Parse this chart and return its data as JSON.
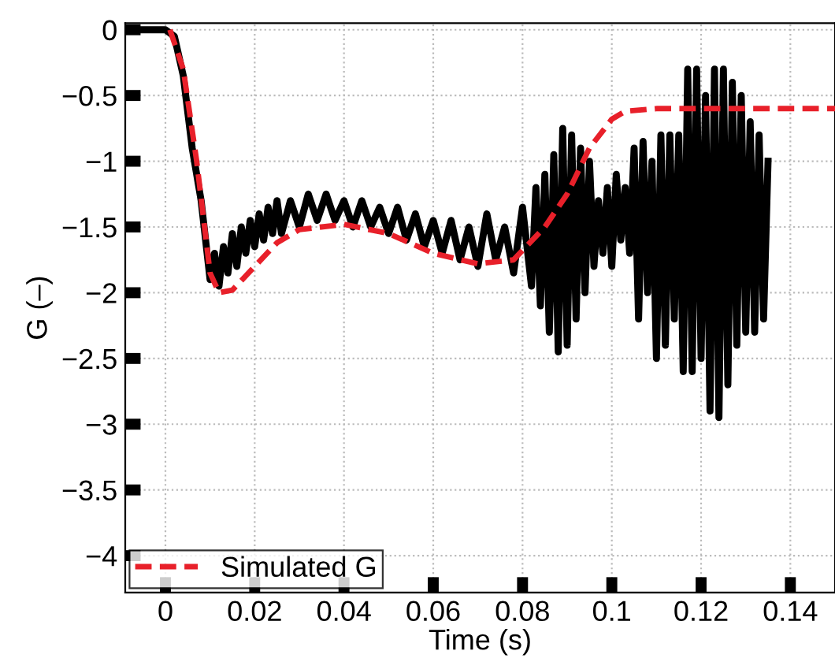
{
  "chart_data": {
    "type": "line",
    "xlabel": "Time (s)",
    "ylabel": "G (–)",
    "xlim": [
      -0.009,
      0.15
    ],
    "ylim": [
      -4.28,
      0.05
    ],
    "xticks": [
      0,
      0.02,
      0.04,
      0.06,
      0.08,
      0.1,
      0.12,
      0.14
    ],
    "yticks": [
      0,
      {
        "value": -0.5,
        "label": "−0.5"
      },
      {
        "value": -1,
        "label": "−1"
      },
      {
        "value": -1.5,
        "label": "−1.5"
      },
      {
        "value": -2,
        "label": "−2"
      },
      {
        "value": -2.5,
        "label": "−2.5"
      },
      {
        "value": -3,
        "label": "−3"
      },
      {
        "value": -3.5,
        "label": "−3.5"
      },
      {
        "value": -4,
        "label": "−4"
      }
    ],
    "grid": true,
    "legend": "bottom left",
    "series": [
      {
        "color": "#000000",
        "line_style": "solid",
        "x": [
          -0.009,
          0.0,
          0.002,
          0.004,
          0.006,
          0.008,
          0.01,
          0.011,
          0.012,
          0.013,
          0.014,
          0.015,
          0.016,
          0.017,
          0.018,
          0.019,
          0.02,
          0.021,
          0.022,
          0.023,
          0.024,
          0.025,
          0.026,
          0.028,
          0.03,
          0.032,
          0.034,
          0.036,
          0.038,
          0.04,
          0.042,
          0.044,
          0.046,
          0.048,
          0.05,
          0.052,
          0.054,
          0.056,
          0.058,
          0.06,
          0.062,
          0.064,
          0.066,
          0.068,
          0.07,
          0.072,
          0.074,
          0.076,
          0.078,
          0.08,
          0.082,
          0.083,
          0.084,
          0.085,
          0.086,
          0.087,
          0.088,
          0.089,
          0.09,
          0.091,
          0.092,
          0.093,
          0.094,
          0.095,
          0.096,
          0.097,
          0.098,
          0.099,
          0.1,
          0.101,
          0.102,
          0.103,
          0.104,
          0.105,
          0.106,
          0.107,
          0.108,
          0.109,
          0.11,
          0.111,
          0.112,
          0.113,
          0.114,
          0.115,
          0.116,
          0.117,
          0.118,
          0.119,
          0.12,
          0.121,
          0.122,
          0.123,
          0.124,
          0.125,
          0.126,
          0.127,
          0.128,
          0.129,
          0.13,
          0.131,
          0.132,
          0.133,
          0.134,
          0.135
        ],
        "values": [
          0,
          0,
          -0.05,
          -0.35,
          -0.9,
          -1.3,
          -1.9,
          -1.7,
          -1.95,
          -1.65,
          -1.85,
          -1.55,
          -1.8,
          -1.5,
          -1.7,
          -1.45,
          -1.65,
          -1.4,
          -1.6,
          -1.35,
          -1.55,
          -1.3,
          -1.55,
          -1.3,
          -1.5,
          -1.25,
          -1.45,
          -1.25,
          -1.45,
          -1.3,
          -1.5,
          -1.3,
          -1.5,
          -1.35,
          -1.55,
          -1.35,
          -1.6,
          -1.4,
          -1.65,
          -1.45,
          -1.7,
          -1.45,
          -1.75,
          -1.5,
          -1.8,
          -1.4,
          -1.75,
          -1.5,
          -1.85,
          -1.35,
          -1.95,
          -1.2,
          -2.1,
          -1.1,
          -2.3,
          -0.95,
          -2.45,
          -0.75,
          -2.4,
          -0.8,
          -2.2,
          -0.9,
          -2.0,
          -1.0,
          -1.8,
          -1.3,
          -1.7,
          -1.2,
          -1.8,
          -1.1,
          -1.6,
          -1.2,
          -1.7,
          -0.9,
          -2.2,
          -0.85,
          -2.0,
          -1.0,
          -2.5,
          -0.8,
          -2.4,
          -0.8,
          -2.2,
          -0.8,
          -2.6,
          -0.3,
          -2.6,
          -0.3,
          -2.5,
          -0.5,
          -2.9,
          -0.3,
          -2.95,
          -0.3,
          -2.7,
          -0.4,
          -2.4,
          -0.5,
          -2.3,
          -0.7,
          -2.3,
          -0.8,
          -2.2,
          -1.0
        ]
      },
      {
        "name": "Simulated G",
        "color": "#e8202a",
        "line_style": "dashed",
        "x": [
          0.001,
          0.004,
          0.007,
          0.01,
          0.012,
          0.015,
          0.02,
          0.025,
          0.03,
          0.04,
          0.05,
          0.06,
          0.07,
          0.078,
          0.085,
          0.09,
          0.095,
          0.1,
          0.103,
          0.11,
          0.15
        ],
        "values": [
          0,
          -0.3,
          -1.0,
          -1.85,
          -2.0,
          -1.98,
          -1.8,
          -1.62,
          -1.52,
          -1.48,
          -1.55,
          -1.7,
          -1.78,
          -1.75,
          -1.5,
          -1.25,
          -0.9,
          -0.68,
          -0.62,
          -0.6,
          -0.6
        ]
      }
    ]
  }
}
